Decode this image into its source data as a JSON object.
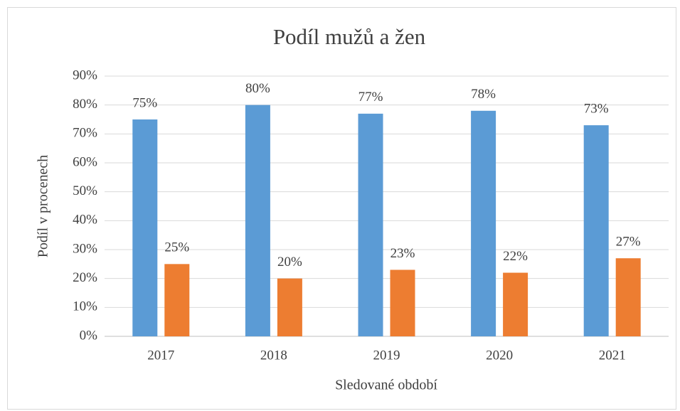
{
  "chart_data": {
    "type": "bar",
    "title": "Podíl mužů a žen",
    "x_label": "Sledované období",
    "y_label": "Podíl v procenech",
    "categories": [
      "2017",
      "2018",
      "2019",
      "2020",
      "2021"
    ],
    "series": [
      {
        "color": "#5b9bd5",
        "values": [
          75,
          80,
          77,
          78,
          73
        ],
        "value_labels": [
          "75%",
          "80%",
          "77%",
          "78%",
          "73%"
        ]
      },
      {
        "color": "#ed7d31",
        "values": [
          25,
          20,
          23,
          22,
          27
        ],
        "value_labels": [
          "25%",
          "20%",
          "23%",
          "22%",
          "27%"
        ]
      }
    ],
    "ylim": [
      0,
      90
    ],
    "yticks": [
      {
        "value": 0,
        "label": "0%"
      },
      {
        "value": 10,
        "label": "10%"
      },
      {
        "value": 20,
        "label": "20%"
      },
      {
        "value": 30,
        "label": "30%"
      },
      {
        "value": 40,
        "label": "40%"
      },
      {
        "value": 50,
        "label": "50%"
      },
      {
        "value": 60,
        "label": "60%"
      },
      {
        "value": 70,
        "label": "70%"
      },
      {
        "value": 80,
        "label": "80%"
      },
      {
        "value": 90,
        "label": "90%"
      }
    ],
    "grid": true
  }
}
